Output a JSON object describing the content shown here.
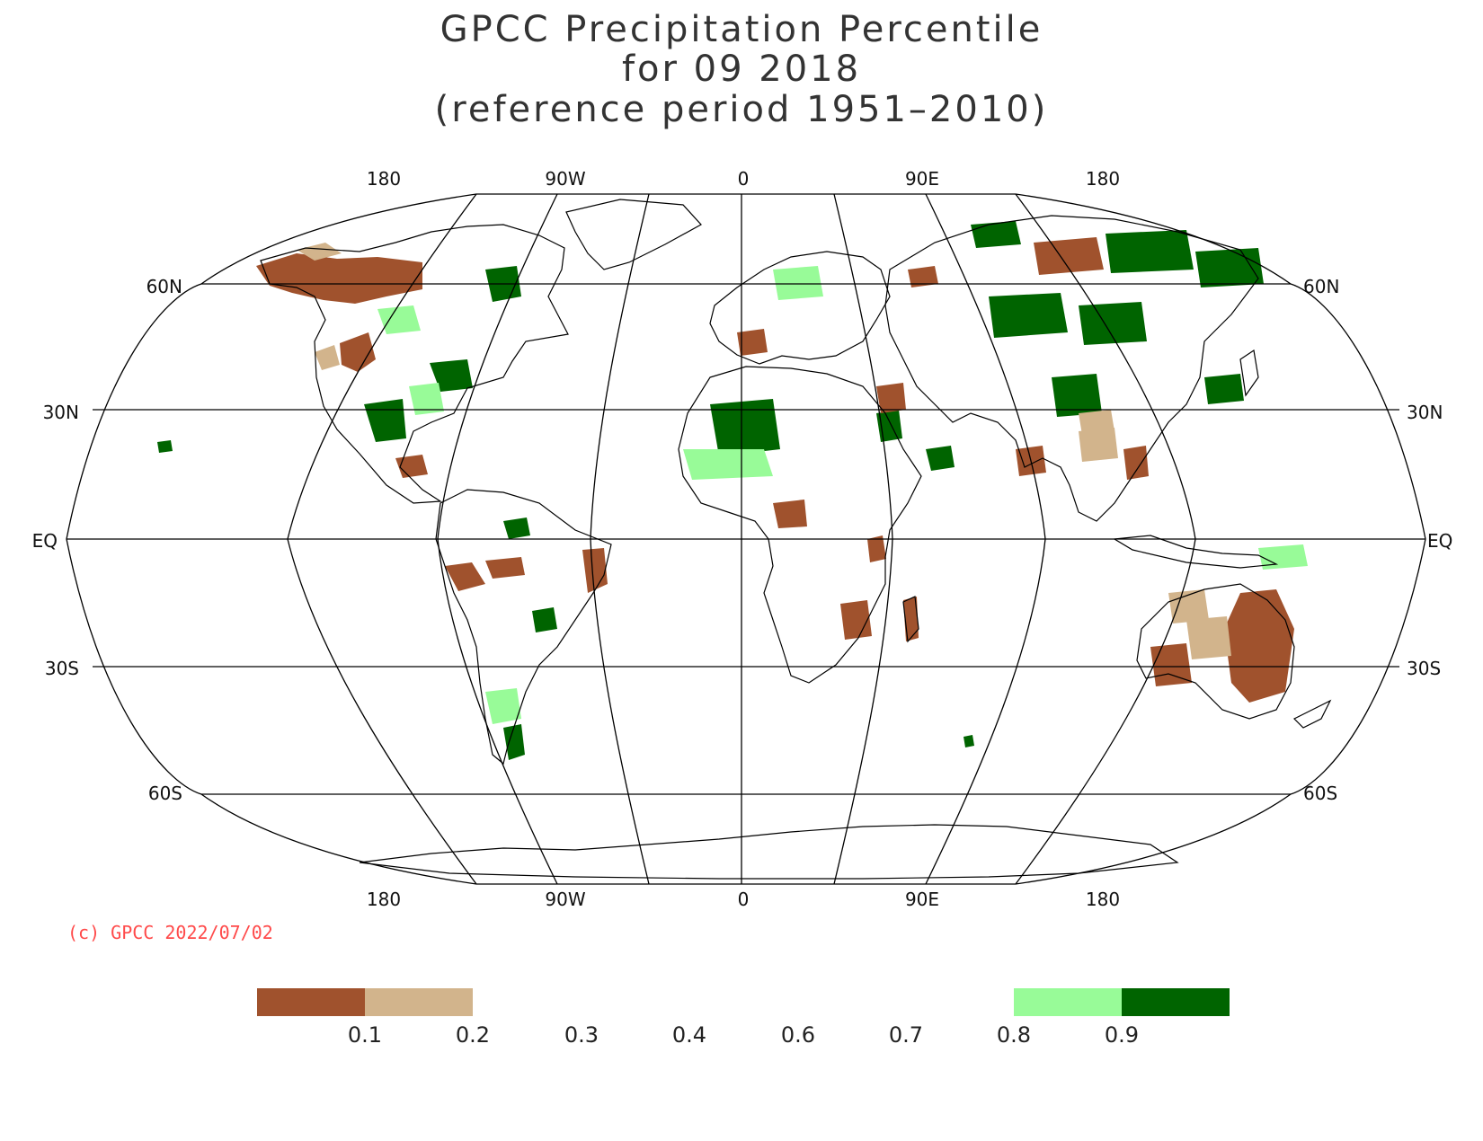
{
  "title": {
    "line1": "GPCC Precipitation Percentile",
    "line2": "for 09 2018",
    "line3": "(reference period 1951–2010)"
  },
  "map": {
    "projection": "Robinson",
    "longitude_labels": [
      "180",
      "90W",
      "0",
      "90E",
      "180"
    ],
    "latitude_labels": {
      "n60": "60N",
      "n30": "30N",
      "eq": "EQ",
      "s30": "30S",
      "s60": "60S"
    }
  },
  "credit": "(c) GPCC 2022/07/02",
  "legend": {
    "colors": {
      "very_dry": "#a0522d",
      "dry": "#d2b48c",
      "wet": "#98fb98",
      "very_wet": "#006400"
    },
    "ticks": [
      "0.1",
      "0.2",
      "0.3",
      "0.4",
      "0.6",
      "0.7",
      "0.8",
      "0.9"
    ]
  }
}
